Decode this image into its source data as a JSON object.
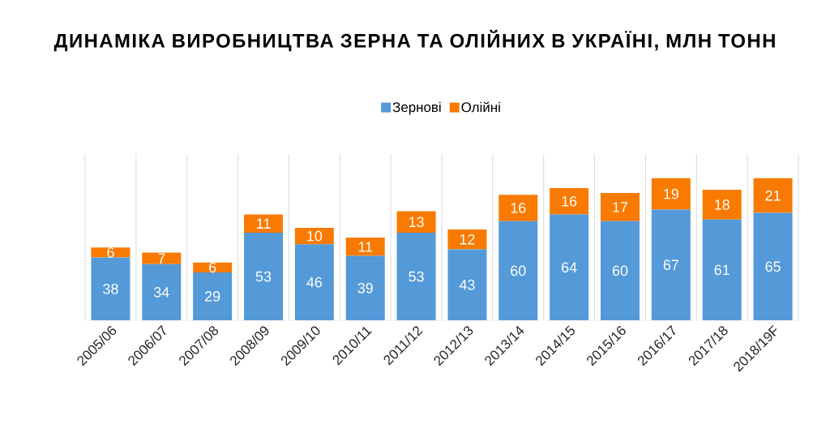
{
  "chart_data": {
    "type": "bar",
    "stacked": true,
    "title": "ДИНАМІКА ВИРОБНИЦТВА ЗЕРНА ТА ОЛІЙНИХ В УКРАЇНІ, МЛН ТОНН",
    "categories": [
      "2005/06",
      "2006/07",
      "2007/08",
      "2008/09",
      "2009/10",
      "2010/11",
      "2011/12",
      "2012/13",
      "2013/14",
      "2014/15",
      "2015/16",
      "2016/17",
      "2017/18",
      "2018/19F"
    ],
    "series": [
      {
        "name": "Зернові",
        "color": "#5499d8",
        "values": [
          38,
          34,
          29,
          53,
          46,
          39,
          53,
          43,
          60,
          64,
          60,
          67,
          61,
          65
        ]
      },
      {
        "name": "Олійні",
        "color": "#f97a00",
        "values": [
          6,
          7,
          6,
          11,
          10,
          11,
          13,
          12,
          16,
          16,
          17,
          19,
          18,
          21
        ]
      }
    ],
    "data_labels": true,
    "legend": "top",
    "grid": "x"
  }
}
